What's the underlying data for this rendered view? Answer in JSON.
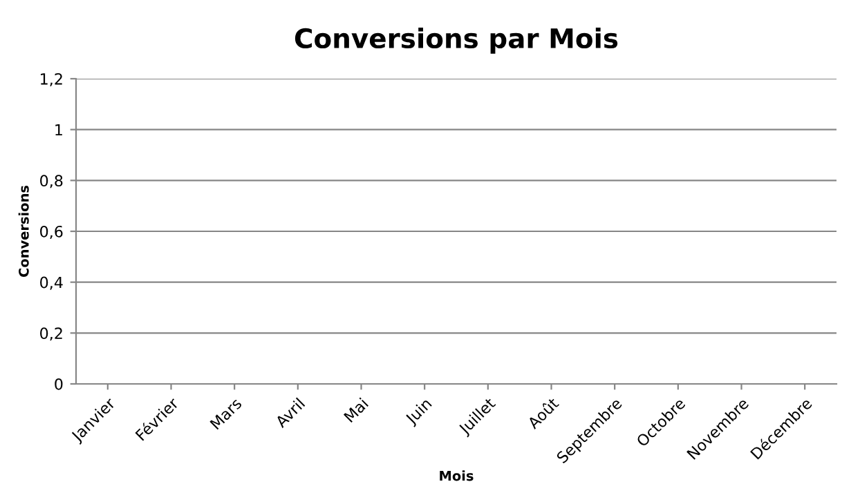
{
  "chart_data": {
    "type": "line",
    "title": "Conversions par Mois",
    "xlabel": "Mois",
    "ylabel": "Conversions",
    "categories": [
      "Janvier",
      "Février",
      "Mars",
      "Avril",
      "Mai",
      "Juin",
      "Juillet",
      "Août",
      "Septembre",
      "Octobre",
      "Novembre",
      "Décembre"
    ],
    "values": [
      null,
      null,
      null,
      null,
      null,
      null,
      null,
      null,
      null,
      null,
      null,
      null
    ],
    "ylim": [
      0,
      1.2
    ],
    "yticks": [
      0,
      {
        "value": 0.2,
        "label": "0,2"
      },
      {
        "value": 0.4,
        "label": "0,4"
      },
      {
        "value": 0.6,
        "label": "0,6"
      },
      {
        "value": 0.8,
        "label": "0,8"
      },
      1,
      {
        "value": 1.2,
        "label": "1,2"
      }
    ],
    "grid": "y",
    "legend": false
  }
}
